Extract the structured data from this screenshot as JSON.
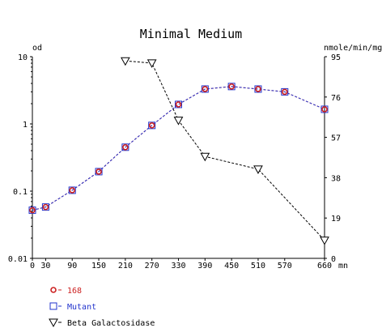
{
  "chart_data": {
    "type": "line",
    "title": "Minimal Medium",
    "left_axis": {
      "label": "od",
      "scale": "log",
      "range": [
        0.01,
        10
      ],
      "ticks": [
        "10",
        "1",
        "0.1",
        "0.01"
      ]
    },
    "right_axis": {
      "label": "nmole/min/mg",
      "scale": "linear",
      "range": [
        0,
        95
      ],
      "ticks": [
        "95",
        "76",
        "57",
        "38",
        "19",
        "0"
      ]
    },
    "x_axis": {
      "label": "mn",
      "range": [
        0,
        660
      ],
      "ticks": [
        "0",
        "30",
        "90",
        "150",
        "210",
        "270",
        "330",
        "390",
        "450",
        "510",
        "570",
        "660"
      ]
    },
    "grid": false,
    "legend_position": "bottom-left",
    "series": [
      {
        "name": "168",
        "axis": "left",
        "marker": "circle",
        "color": "#cc2222",
        "x": [
          0,
          30,
          90,
          150,
          210,
          270,
          330,
          390,
          450,
          510,
          570,
          660
        ],
        "y": [
          0.052,
          0.058,
          0.103,
          0.195,
          0.45,
          0.95,
          1.95,
          3.3,
          3.6,
          3.3,
          3.0,
          1.65
        ]
      },
      {
        "name": "Mutant",
        "axis": "left",
        "marker": "square",
        "color": "#2233cc",
        "x": [
          0,
          30,
          90,
          150,
          210,
          270,
          330,
          390,
          450,
          510,
          570,
          660
        ],
        "y": [
          0.052,
          0.058,
          0.103,
          0.195,
          0.45,
          0.95,
          1.95,
          3.3,
          3.6,
          3.3,
          3.0,
          1.65
        ]
      },
      {
        "name": "Beta Galactosidase",
        "axis": "right",
        "marker": "triangle-down",
        "color": "#000000",
        "x": [
          210,
          270,
          330,
          390,
          510,
          660
        ],
        "y": [
          93,
          92,
          65,
          48,
          42,
          8.5
        ]
      }
    ]
  }
}
